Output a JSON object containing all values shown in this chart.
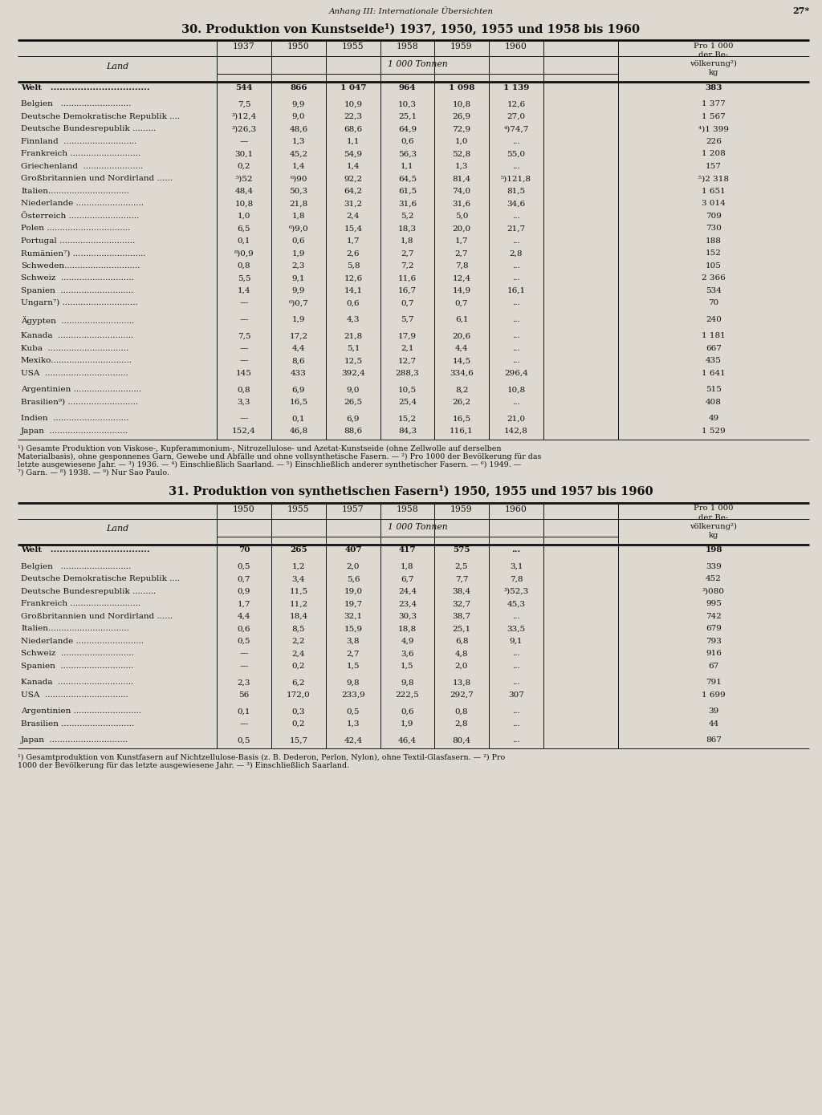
{
  "page_header_left": "Anhang III: Internationale Übersichten",
  "page_header_right": "27*",
  "bg_color": "#ddd9d0",
  "text_color": "#111111",
  "table1": {
    "title": "30. Produktion von Kunstseide¹) 1937, 1950, 1955 und 1958 bis 1960",
    "year_headers": [
      "1937",
      "1950",
      "1955",
      "1958",
      "1959",
      "1960"
    ],
    "subheader": "1 000 Tonnen",
    "pro_header": [
      "Pro 1 000",
      "der Be-",
      "völkerung²)",
      "kg"
    ],
    "rows": [
      [
        "Welt   .................................",
        "bold",
        "544",
        "866",
        "1 047",
        "964",
        "1 098",
        "1 139",
        "383"
      ],
      [
        "",
        "gap",
        "",
        "",
        "",
        "",
        "",
        "",
        ""
      ],
      [
        "Belgien   ...........................",
        "normal",
        "7,5",
        "9,9",
        "10,9",
        "10,3",
        "10,8",
        "12,6",
        "1 377"
      ],
      [
        "Deutsche Demokratische Republik ....",
        "normal",
        "³)12,4",
        "9,0",
        "22,3",
        "25,1",
        "26,9",
        "27,0",
        "1 567"
      ],
      [
        "Deutsche Bundesrepublik .........",
        "normal",
        "³)26,3",
        "48,6",
        "68,6",
        "64,9",
        "72,9",
        "⁴)74,7",
        "⁴)1 399"
      ],
      [
        "Finnland  ............................",
        "normal",
        "—",
        "1,3",
        "1,1",
        "0,6",
        "1,0",
        "...",
        "226"
      ],
      [
        "Frankreich ...........................",
        "normal",
        "30,1",
        "45,2",
        "54,9",
        "56,3",
        "52,8",
        "55,0",
        "1 208"
      ],
      [
        "Griechenland  .......................",
        "normal",
        "0,2",
        "1,4",
        "1,4",
        "1,1",
        "1,3",
        "...",
        "157"
      ],
      [
        "Großbritannien und Nordirland ......",
        "normal",
        "⁵)52",
        "⁶)90",
        "92,2",
        "64,5",
        "81,4",
        "⁵)121,8",
        "⁵)2 318"
      ],
      [
        "Italien...............................",
        "normal",
        "48,4",
        "50,3",
        "64,2",
        "61,5",
        "74,0",
        "81,5",
        "1 651"
      ],
      [
        "Niederlande ..........................",
        "normal",
        "10,8",
        "21,8",
        "31,2",
        "31,6",
        "31,6",
        "34,6",
        "3 014"
      ],
      [
        "Österreich ...........................",
        "normal",
        "1,0",
        "1,8",
        "2,4",
        "5,2",
        "5,0",
        "...",
        "709"
      ],
      [
        "Polen ................................",
        "normal",
        "6,5",
        "⁶)9,0",
        "15,4",
        "18,3",
        "20,0",
        "21,7",
        "730"
      ],
      [
        "Portugal .............................",
        "normal",
        "0,1",
        "0,6",
        "1,7",
        "1,8",
        "1,7",
        "...",
        "188"
      ],
      [
        "Rumänien⁷) ............................",
        "normal",
        "⁸)0,9",
        "1,9",
        "2,6",
        "2,7",
        "2,7",
        "2,8",
        "152"
      ],
      [
        "Schweden.............................",
        "normal",
        "0,8",
        "2,3",
        "5,8",
        "7,2",
        "7,8",
        "...",
        "105"
      ],
      [
        "Schweiz  ............................",
        "normal",
        "5,5",
        "9,1",
        "12,6",
        "11,6",
        "12,4",
        "...",
        "2 366"
      ],
      [
        "Spanien  ............................",
        "normal",
        "1,4",
        "9,9",
        "14,1",
        "16,7",
        "14,9",
        "16,1",
        "534"
      ],
      [
        "Ungarn⁷) .............................",
        "normal",
        "—",
        "⁶)0,7",
        "0,6",
        "0,7",
        "0,7",
        "...",
        "70"
      ],
      [
        "",
        "gap",
        "",
        "",
        "",
        "",
        "",
        "",
        ""
      ],
      [
        "Ägypten  ............................",
        "normal",
        "—",
        "1,9",
        "4,3",
        "5,7",
        "6,1",
        "...",
        "240"
      ],
      [
        "",
        "gap",
        "",
        "",
        "",
        "",
        "",
        "",
        ""
      ],
      [
        "Kanada  .............................",
        "normal",
        "7,5",
        "17,2",
        "21,8",
        "17,9",
        "20,6",
        "...",
        "1 181"
      ],
      [
        "Kuba  ...............................",
        "normal",
        "—",
        "4,4",
        "5,1",
        "2,1",
        "4,4",
        "...",
        "667"
      ],
      [
        "Mexiko...............................",
        "normal",
        "—",
        "8,6",
        "12,5",
        "12,7",
        "14,5",
        "...",
        "435"
      ],
      [
        "USA  ................................",
        "normal",
        "145",
        "433",
        "392,4",
        "288,3",
        "334,6",
        "296,4",
        "1 641"
      ],
      [
        "",
        "gap",
        "",
        "",
        "",
        "",
        "",
        "",
        ""
      ],
      [
        "Argentinien ..........................",
        "normal",
        "0,8",
        "6,9",
        "9,0",
        "10,5",
        "8,2",
        "10,8",
        "515"
      ],
      [
        "Brasilien⁹) ...........................",
        "normal",
        "3,3",
        "16,5",
        "26,5",
        "25,4",
        "26,2",
        "...",
        "408"
      ],
      [
        "",
        "gap",
        "",
        "",
        "",
        "",
        "",
        "",
        ""
      ],
      [
        "Indien  .............................",
        "normal",
        "—",
        "0,1",
        "6,9",
        "15,2",
        "16,5",
        "21,0",
        "49"
      ],
      [
        "Japan  ..............................",
        "normal",
        "152,4",
        "46,8",
        "88,6",
        "84,3",
        "116,1",
        "142,8",
        "1 529"
      ]
    ],
    "footnotes": [
      "¹) Gesamte Produktion von Viskose-, Kupferammonium-, Nitrozellulose- und Azetat-Kunstseide (ohne Zellwolle auf derselben",
      "Materialbasis), ohne gesponnenes Garn, Gewebe und Abfälle und ohne vollsynthetische Fasern. — ²) Pro 1000 der Bevölkerung für das",
      "letzte ausgewiesene Jahr. — ³) 1936. — ⁴) Einschließlich Saarland. — ⁵) Einschließlich anderer synthetischer Fasern. — ⁶) 1949. —",
      "⁷) Garn. — ⁸) 1938. — ⁹) Nur Sao Paulo."
    ]
  },
  "table2": {
    "title": "31. Produktion von synthetischen Fasern¹) 1950, 1955 und 1957 bis 1960",
    "year_headers": [
      "1950",
      "1955",
      "1957",
      "1958",
      "1959",
      "1960"
    ],
    "subheader": "1 000 Tonnen",
    "pro_header": [
      "Pro 1 000",
      "der Be-",
      "völkerung²)",
      "kg"
    ],
    "rows": [
      [
        "Welt   .................................",
        "bold",
        "70",
        "265",
        "407",
        "417",
        "575",
        "...",
        "198"
      ],
      [
        "",
        "gap",
        "",
        "",
        "",
        "",
        "",
        "",
        ""
      ],
      [
        "Belgien   ...........................",
        "normal",
        "0,5",
        "1,2",
        "2,0",
        "1,8",
        "2,5",
        "3,1",
        "339"
      ],
      [
        "Deutsche Demokratische Republik ....",
        "normal",
        "0,7",
        "3,4",
        "5,6",
        "6,7",
        "7,7",
        "7,8",
        "452"
      ],
      [
        "Deutsche Bundesrepublik .........",
        "normal",
        "0,9",
        "11,5",
        "19,0",
        "24,4",
        "38,4",
        "³)52,3",
        "³)080"
      ],
      [
        "Frankreich ...........................",
        "normal",
        "1,7",
        "11,2",
        "19,7",
        "23,4",
        "32,7",
        "45,3",
        "995"
      ],
      [
        "Großbritannien und Nordirland ......",
        "normal",
        "4,4",
        "18,4",
        "32,1",
        "30,3",
        "38,7",
        "...",
        "742"
      ],
      [
        "Italien...............................",
        "normal",
        "0,6",
        "8,5",
        "15,9",
        "18,8",
        "25,1",
        "33,5",
        "679"
      ],
      [
        "Niederlande ..........................",
        "normal",
        "0,5",
        "2,2",
        "3,8",
        "4,9",
        "6,8",
        "9,1",
        "793"
      ],
      [
        "Schweiz  ............................",
        "normal",
        "—",
        "2,4",
        "2,7",
        "3,6",
        "4,8",
        "...",
        "916"
      ],
      [
        "Spanien  ............................",
        "normal",
        "—",
        "0,2",
        "1,5",
        "1,5",
        "2,0",
        "...",
        "67"
      ],
      [
        "",
        "gap",
        "",
        "",
        "",
        "",
        "",
        "",
        ""
      ],
      [
        "Kanada  .............................",
        "normal",
        "2,3",
        "6,2",
        "9,8",
        "9,8",
        "13,8",
        "...",
        "791"
      ],
      [
        "USA  ................................",
        "normal",
        "56",
        "172,0",
        "233,9",
        "222,5",
        "292,7",
        "307",
        "1 699"
      ],
      [
        "",
        "gap",
        "",
        "",
        "",
        "",
        "",
        "",
        ""
      ],
      [
        "Argentinien ..........................",
        "normal",
        "0,1",
        "0,3",
        "0,5",
        "0,6",
        "0,8",
        "...",
        "39"
      ],
      [
        "Brasilien ............................",
        "normal",
        "—",
        "0,2",
        "1,3",
        "1,9",
        "2,8",
        "...",
        "44"
      ],
      [
        "",
        "gap",
        "",
        "",
        "",
        "",
        "",
        "",
        ""
      ],
      [
        "Japan  ..............................",
        "normal",
        "0,5",
        "15,7",
        "42,4",
        "46,4",
        "80,4",
        "...",
        "867"
      ]
    ],
    "footnotes": [
      "¹) Gesamtproduktion von Kunstfasern auf Nichtzellulose-Basis (z. B. Dederon, Perlon, Nylon), ohne Textil-Glasfasern. — ²) Pro",
      "1000 der Bevölkerung für das letzte ausgewiesene Jahr. — ³) Einschließlich Saarland."
    ]
  }
}
